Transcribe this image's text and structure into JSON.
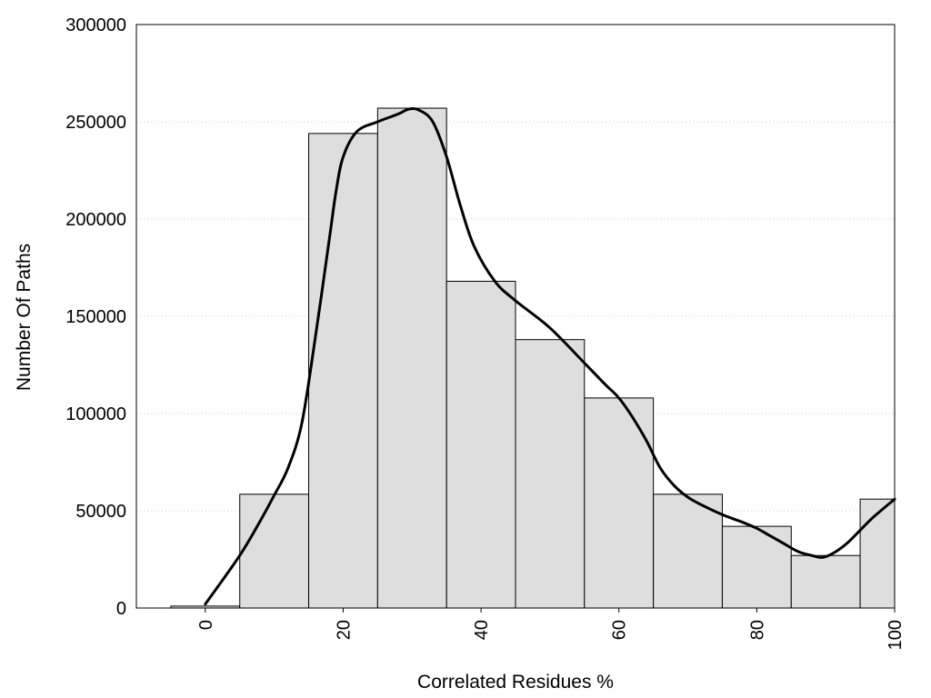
{
  "chart_data": {
    "type": "bar",
    "title": "",
    "xlabel": "Correlated Residues %",
    "ylabel": "Number Of Paths",
    "xlim": [
      -10,
      100
    ],
    "ylim": [
      0,
      300000
    ],
    "grid": "horizontal dotted",
    "legend": "none",
    "x_ticks": [
      0,
      20,
      40,
      60,
      80,
      100
    ],
    "x_tick_labels": [
      "0",
      "20",
      "40",
      "60",
      "80",
      "100"
    ],
    "y_ticks": [
      0,
      50000,
      100000,
      150000,
      200000,
      250000,
      300000
    ],
    "y_tick_labels": [
      "0",
      "50000",
      "100000",
      "150000",
      "200000",
      "250000",
      "300000"
    ],
    "bin_width": 10,
    "bins": [
      {
        "center": 0,
        "value": 1000
      },
      {
        "center": 10,
        "value": 58500
      },
      {
        "center": 20,
        "value": 244000
      },
      {
        "center": 30,
        "value": 257000
      },
      {
        "center": 40,
        "value": 168000
      },
      {
        "center": 50,
        "value": 138000
      },
      {
        "center": 60,
        "value": 108000
      },
      {
        "center": 70,
        "value": 58500
      },
      {
        "center": 80,
        "value": 42000
      },
      {
        "center": 90,
        "value": 27000
      },
      {
        "center": 100,
        "value": 56000
      }
    ],
    "curve": {
      "x": [
        0,
        5,
        8,
        10,
        12,
        14,
        16,
        18,
        19,
        20,
        22,
        25,
        28,
        29.5,
        31,
        33,
        35,
        37,
        39,
        42,
        45,
        50,
        55,
        58,
        60,
        62,
        64,
        66,
        68,
        70,
        72,
        75,
        78,
        80,
        82,
        84,
        86,
        88,
        89.5,
        91,
        93,
        95,
        97,
        100
      ],
      "y": [
        2000,
        27000,
        45000,
        58000,
        72000,
        95000,
        140000,
        190000,
        215000,
        232000,
        245000,
        250000,
        254000,
        256500,
        256000,
        250000,
        232000,
        207000,
        186000,
        168000,
        158000,
        144000,
        126000,
        115000,
        108000,
        98000,
        86000,
        72000,
        63000,
        57000,
        53000,
        48000,
        44000,
        41000,
        37000,
        33000,
        29000,
        27000,
        26000,
        28000,
        33000,
        40000,
        47000,
        56000
      ]
    }
  }
}
